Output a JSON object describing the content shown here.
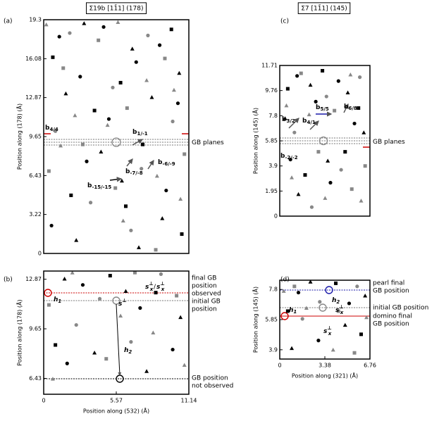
{
  "chart_data": [
    {
      "type": "scatter",
      "title": "Σ19b [11̄1] (178)",
      "panel": "(a)",
      "ylabel": "Position along (178) (Å)",
      "xlim": [
        0,
        11.14
      ],
      "ylim": [
        0,
        19.3
      ],
      "yticks": [
        0,
        3.22,
        6.43,
        9.65,
        12.87,
        16.08,
        19.3
      ],
      "series": [
        {
          "marker": "circle",
          "color": "#000000",
          "x": [
            1.2,
            4.6,
            8.9,
            2.8,
            7.1,
            10.3,
            5.0,
            3.3,
            9.4,
            0.6
          ],
          "y": [
            17.9,
            18.7,
            17.2,
            14.6,
            15.8,
            12.4,
            11.1,
            7.6,
            5.2,
            2.3
          ]
        },
        {
          "marker": "square",
          "color": "#000000",
          "x": [
            0.7,
            5.9,
            9.8,
            3.9,
            7.6,
            2.1,
            10.6,
            6.3
          ],
          "y": [
            16.2,
            14.1,
            18.5,
            11.8,
            9.0,
            4.8,
            1.6,
            3.9
          ]
        },
        {
          "marker": "triangle",
          "color": "#000000",
          "x": [
            3.1,
            6.8,
            10.4,
            1.7,
            8.3,
            4.4,
            6.0,
            2.5,
            9.1,
            7.3
          ],
          "y": [
            19.0,
            16.9,
            14.9,
            13.2,
            12.9,
            8.4,
            6.0,
            1.1,
            2.9,
            0.5
          ]
        },
        {
          "marker": "circle",
          "color": "#888888",
          "x": [
            2.0,
            8.0,
            5.3,
            0.9,
            9.9,
            3.6,
            7.5,
            6.7
          ],
          "y": [
            18.2,
            18.0,
            13.7,
            10.1,
            10.9,
            4.2,
            7.0,
            1.9
          ]
        },
        {
          "marker": "square",
          "color": "#888888",
          "x": [
            4.2,
            9.3,
            1.5,
            6.4,
            10.8,
            0.4,
            5.5,
            8.6,
            3.0
          ],
          "y": [
            17.6,
            16.1,
            15.3,
            12.0,
            8.2,
            6.8,
            5.4,
            0.3,
            9.0
          ]
        },
        {
          "marker": "triangle",
          "color": "#888888",
          "x": [
            5.7,
            0.2,
            7.9,
            10.0,
            2.4,
            4.9,
            8.7,
            1.3,
            6.1,
            10.5
          ],
          "y": [
            19.1,
            18.9,
            14.3,
            13.5,
            11.4,
            10.6,
            6.4,
            8.9,
            2.7,
            4.5
          ]
        }
      ],
      "annotations": [
        {
          "text": "b",
          "sub": "4/4",
          "color": "#cc0000"
        },
        {
          "text": "b",
          "sub": "1/-1",
          "color": "#555555"
        },
        {
          "text": "b",
          "sub": "-6/-9",
          "color": "#555555"
        },
        {
          "text": "b",
          "sub": "-7/-8",
          "color": "#555555"
        },
        {
          "text": "b",
          "sub": "-15/-15",
          "color": "#000000"
        },
        {
          "text": "GB planes",
          "color": "#777777"
        }
      ]
    },
    {
      "type": "scatter",
      "title": "Σ7 [11̄1] (145)",
      "panel": "(c)",
      "ylabel": "Position along (145) (Å)",
      "xlim": [
        0,
        6.76
      ],
      "ylim": [
        0,
        11.71
      ],
      "yticks": [
        0,
        1.95,
        3.9,
        5.85,
        7.8,
        9.76,
        11.71
      ],
      "series": [
        {
          "marker": "circle",
          "color": "#000000",
          "x": [
            1.3,
            4.4,
            2.7,
            5.6,
            0.8,
            3.8
          ],
          "y": [
            10.9,
            10.5,
            8.9,
            7.2,
            4.4,
            2.6
          ]
        },
        {
          "marker": "square",
          "color": "#000000",
          "x": [
            0.6,
            3.2,
            5.9,
            1.9,
            4.9
          ],
          "y": [
            9.9,
            11.3,
            8.4,
            3.2,
            5.0
          ]
        },
        {
          "marker": "triangle",
          "color": "#000000",
          "x": [
            2.3,
            5.1,
            0.4,
            3.6,
            6.3,
            1.4
          ],
          "y": [
            10.2,
            9.6,
            7.6,
            4.3,
            6.5,
            1.7
          ]
        },
        {
          "marker": "circle",
          "color": "#888888",
          "x": [
            3.5,
            6.0,
            1.1,
            4.6,
            2.4
          ],
          "y": [
            9.3,
            10.8,
            6.5,
            3.6,
            0.7
          ]
        },
        {
          "marker": "square",
          "color": "#888888",
          "x": [
            1.6,
            4.1,
            6.4,
            2.9,
            5.4
          ],
          "y": [
            11.1,
            8.2,
            3.9,
            5.0,
            2.1
          ]
        },
        {
          "marker": "triangle",
          "color": "#888888",
          "x": [
            0.5,
            5.3,
            2.2,
            3.4,
            6.1,
            0.9
          ],
          "y": [
            8.6,
            11.0,
            7.9,
            1.4,
            1.2,
            3.0
          ]
        }
      ],
      "annotations": [
        {
          "text": "b",
          "sub": "5/5",
          "color": "#1a1aaa"
        },
        {
          "text": "b",
          "sub": "3/2",
          "color": "#555555"
        },
        {
          "text": "b",
          "sub": "4/1",
          "color": "#555555"
        },
        {
          "text": "b",
          "sub": "6/8",
          "color": "#555555"
        },
        {
          "text": "b",
          "sub": "-2/-2",
          "color": "#cc0000"
        },
        {
          "text": "GB planes",
          "color": "#777777"
        }
      ]
    },
    {
      "type": "scatter",
      "panel": "(b)",
      "ylabel": "Position along (178) (Å)",
      "xlabel": "Position along (532) (Å)",
      "xlim": [
        0,
        11.14
      ],
      "ylim": [
        5.4,
        13.4
      ],
      "xticks": [
        0,
        5.57,
        11.14
      ],
      "yticks": [
        6.43,
        9.65,
        12.87
      ],
      "series": [
        {
          "marker": "circle",
          "color": "#000000",
          "x": [
            3.0,
            7.4,
            9.9,
            1.8
          ],
          "y": [
            12.5,
            11.0,
            8.3,
            7.4
          ]
        },
        {
          "marker": "square",
          "color": "#000000",
          "x": [
            5.1,
            0.9,
            8.6
          ],
          "y": [
            13.1,
            8.6,
            12.0
          ]
        },
        {
          "marker": "triangle",
          "color": "#000000",
          "x": [
            1.6,
            6.3,
            10.5,
            3.9,
            7.9
          ],
          "y": [
            12.9,
            12.1,
            10.4,
            8.1,
            6.9
          ]
        },
        {
          "marker": "circle",
          "color": "#888888",
          "x": [
            4.3,
            9.0,
            2.5,
            6.7
          ],
          "y": [
            11.6,
            13.2,
            9.9,
            8.8
          ]
        },
        {
          "marker": "square",
          "color": "#888888",
          "x": [
            0.4,
            7.0,
            10.2,
            4.8
          ],
          "y": [
            11.2,
            13.3,
            11.8,
            7.7
          ]
        },
        {
          "marker": "triangle",
          "color": "#888888",
          "x": [
            2.2,
            5.9,
            8.4,
            0.7,
            10.8
          ],
          "y": [
            13.3,
            10.5,
            9.4,
            6.4,
            7.3
          ]
        }
      ],
      "annotations": [
        {
          "lines": [
            "final GB",
            "position",
            "observed"
          ],
          "color": "#cc0000"
        },
        {
          "lines": [
            "initial GB",
            "position"
          ],
          "color": "#777777"
        },
        {
          "lines": [
            "GB position",
            "not observed"
          ],
          "color": "#000000"
        },
        {
          "text": "h",
          "sub": "1",
          "color": "#cc0000"
        },
        {
          "text": "h",
          "sub": "2",
          "color": "#000000"
        },
        {
          "text": "s",
          "sup": "⊥",
          "color": "#000000"
        },
        {
          "text": "s",
          "sup": "⊥",
          "sub": "x",
          "color": "#cc0000"
        },
        {
          "text": "/",
          "color": "#000000"
        },
        {
          "text": "s",
          "sup": "⊥",
          "sub": "x",
          "color": "#1a1aaa"
        }
      ]
    },
    {
      "type": "scatter",
      "panel": "(d)",
      "ylabel": "Position along (145) (Å)",
      "xlabel": "Position along (321) (Å)",
      "xlim": [
        0,
        6.76
      ],
      "ylim": [
        3.3,
        8.4
      ],
      "xticks": [
        0,
        3.38,
        6.76
      ],
      "yticks": [
        3.9,
        5.85,
        7.8
      ],
      "series": [
        {
          "marker": "circle",
          "color": "#000000",
          "x": [
            1.4,
            5.2,
            2.9
          ],
          "y": [
            7.6,
            6.9,
            4.5
          ]
        },
        {
          "marker": "square",
          "color": "#000000",
          "x": [
            0.6,
            4.2,
            6.1
          ],
          "y": [
            6.4,
            8.2,
            4.9
          ]
        },
        {
          "marker": "triangle",
          "color": "#000000",
          "x": [
            2.3,
            4.9,
            0.9,
            6.4
          ],
          "y": [
            8.3,
            5.5,
            4.0,
            7.4
          ]
        },
        {
          "marker": "circle",
          "color": "#888888",
          "x": [
            3.0,
            5.8,
            1.7
          ],
          "y": [
            7.0,
            8.0,
            5.9
          ]
        },
        {
          "marker": "square",
          "color": "#888888",
          "x": [
            1.1,
            4.4,
            5.6
          ],
          "y": [
            8.0,
            6.4,
            3.7
          ]
        },
        {
          "marker": "triangle",
          "color": "#888888",
          "x": [
            2.0,
            4.0,
            6.5,
            0.3
          ],
          "y": [
            6.6,
            3.9,
            6.0,
            7.7
          ]
        }
      ],
      "annotations": [
        {
          "lines": [
            "pearl final",
            "GB position"
          ],
          "color": "#1a1aaa"
        },
        {
          "lines": [
            "initial GB position"
          ],
          "color": "#777777"
        },
        {
          "lines": [
            "domino final",
            "GB position"
          ],
          "color": "#cc0000"
        },
        {
          "text": "h",
          "sub": "2",
          "color": "#1a1aaa"
        },
        {
          "text": "h",
          "sub": "1",
          "color": "#cc0000"
        },
        {
          "text": "s",
          "sup": "⊥",
          "sub": "x",
          "color": "#1a1aaa"
        },
        {
          "text": "s",
          "sup": "⊥",
          "sub": "x",
          "color": "#cc0000"
        }
      ]
    }
  ]
}
